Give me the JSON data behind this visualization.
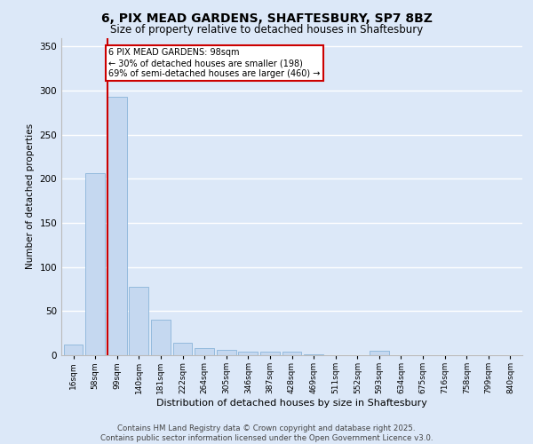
{
  "title_line1": "6, PIX MEAD GARDENS, SHAFTESBURY, SP7 8BZ",
  "title_line2": "Size of property relative to detached houses in Shaftesbury",
  "xlabel": "Distribution of detached houses by size in Shaftesbury",
  "ylabel": "Number of detached properties",
  "categories": [
    "16sqm",
    "58sqm",
    "99sqm",
    "140sqm",
    "181sqm",
    "222sqm",
    "264sqm",
    "305sqm",
    "346sqm",
    "387sqm",
    "428sqm",
    "469sqm",
    "511sqm",
    "552sqm",
    "593sqm",
    "634sqm",
    "675sqm",
    "716sqm",
    "758sqm",
    "799sqm",
    "840sqm"
  ],
  "values": [
    12,
    206,
    293,
    78,
    40,
    14,
    8,
    6,
    4,
    4,
    4,
    1,
    0,
    0,
    5,
    0,
    0,
    0,
    0,
    0,
    0
  ],
  "bar_color": "#c5d8f0",
  "bar_edge_color": "#8ab4d9",
  "background_color": "#dce8f8",
  "fig_background_color": "#dce8f8",
  "grid_color": "#ffffff",
  "red_line_color": "#cc0000",
  "annotation_text_line1": "6 PIX MEAD GARDENS: 98sqm",
  "annotation_text_line2": "← 30% of detached houses are smaller (198)",
  "annotation_text_line3": "69% of semi-detached houses are larger (460) →",
  "annotation_box_color": "#ffffff",
  "annotation_box_edge": "#cc0000",
  "footer_line1": "Contains HM Land Registry data © Crown copyright and database right 2025.",
  "footer_line2": "Contains public sector information licensed under the Open Government Licence v3.0.",
  "ylim": [
    0,
    360
  ],
  "yticks": [
    0,
    50,
    100,
    150,
    200,
    250,
    300,
    350
  ],
  "red_line_bar_index": 2
}
